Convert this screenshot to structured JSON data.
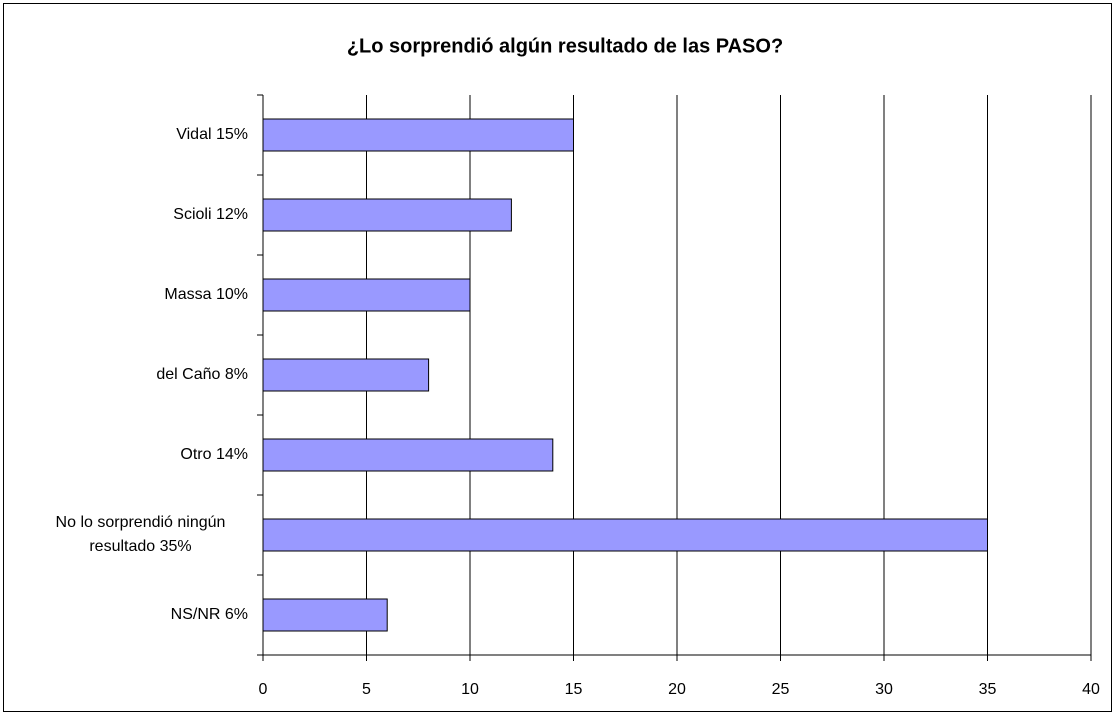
{
  "chart_data": {
    "type": "hbar",
    "title": "¿Lo sorprendió algún resultado de las PASO?",
    "categories": [
      "Vidal 15%",
      "Scioli 12%",
      "Massa 10%",
      "del Caño 8%",
      "Otro 14%",
      "No lo sorprendió ningún resultado 35%",
      "NS/NR 6%"
    ],
    "values": [
      15,
      12,
      10,
      8,
      14,
      35,
      6
    ],
    "color": "#9999ff",
    "xlim": [
      0,
      40
    ],
    "xticks": [
      0,
      5,
      10,
      15,
      20,
      25,
      30,
      35,
      40
    ],
    "grid": true
  }
}
